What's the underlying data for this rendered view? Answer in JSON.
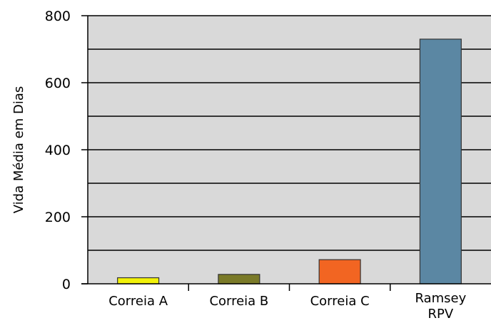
{
  "chart_data": {
    "type": "bar",
    "title": "",
    "xlabel": "",
    "ylabel": "Vida Média em Dias",
    "ylim": [
      0,
      800
    ],
    "yticks": [
      0,
      200,
      400,
      600,
      800
    ],
    "gridlines": [
      0,
      100,
      200,
      300,
      400,
      500,
      600,
      700,
      800
    ],
    "grid": true,
    "legend": "none",
    "plot_background": "#d9d9d9",
    "categories": [
      [
        "Correia A"
      ],
      [
        "Correia B"
      ],
      [
        "Correia C"
      ],
      [
        "Ramsey",
        "RPV"
      ]
    ],
    "values": [
      18,
      28,
      72,
      730
    ],
    "bar_colors": [
      "#f2f20a",
      "#7a7a28",
      "#f26522",
      "#5b87a3"
    ]
  }
}
